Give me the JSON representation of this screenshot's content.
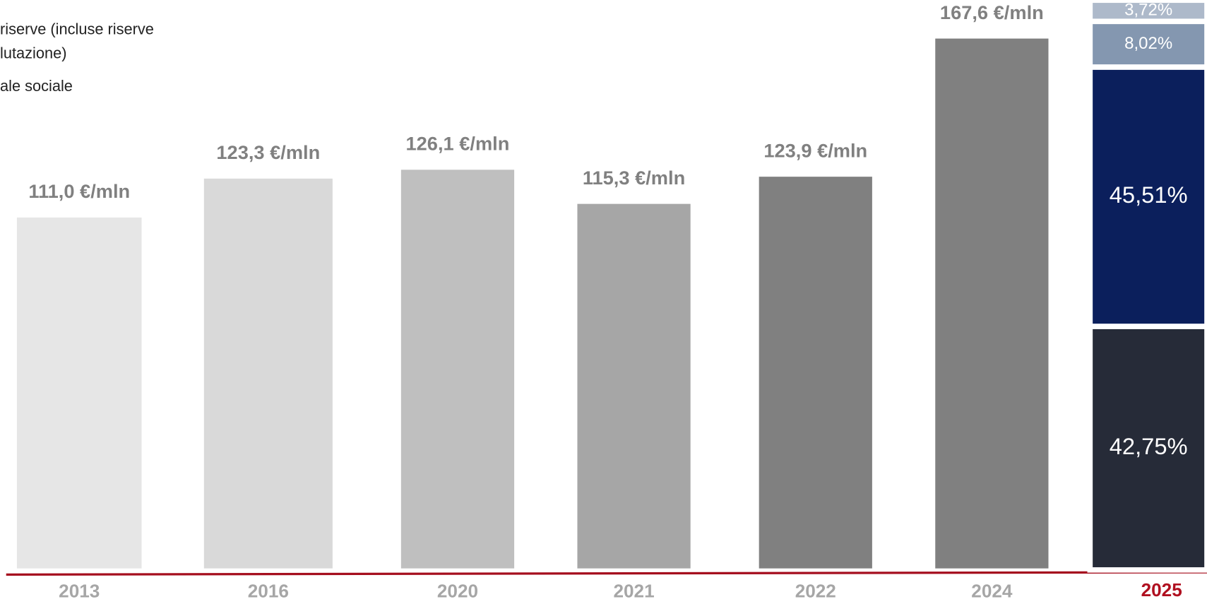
{
  "chart_data": [
    {
      "type": "bar",
      "categories": [
        "2013",
        "2016",
        "2020",
        "2021",
        "2022",
        "2024"
      ],
      "values": [
        111.0,
        123.3,
        126.1,
        115.3,
        123.9,
        167.6
      ],
      "value_labels": [
        "111,0 €/mln",
        "123,3 €/mln",
        "126,1 €/mln",
        "115,3 €/mln",
        "123,9 €/mln",
        "167,6 €/mln"
      ],
      "colors": [
        "#e6e6e6",
        "#d9d9d9",
        "#bfbfbf",
        "#a6a6a6",
        "#808080",
        "#808080"
      ],
      "ylim": [
        0,
        170
      ]
    },
    {
      "type": "stacked_bar",
      "categories": [
        "2025"
      ],
      "legend_text": [
        "riserve (incluse riserve",
        "lutazione)",
        "ale sociale"
      ],
      "series": [
        {
          "color": "#262b38",
          "values": [
            42.75
          ],
          "value_labels": [
            "42,75%"
          ]
        },
        {
          "color": "#0b1f5c",
          "values": [
            45.51
          ],
          "value_labels": [
            "45,51%"
          ]
        },
        {
          "color": "#8497b0",
          "values": [
            8.02
          ],
          "value_labels": [
            "8,02%"
          ]
        },
        {
          "color": "#adb9ca",
          "values": [
            3.72
          ],
          "value_labels": [
            "3,72%"
          ]
        }
      ],
      "ylim": [
        0,
        100
      ]
    }
  ]
}
